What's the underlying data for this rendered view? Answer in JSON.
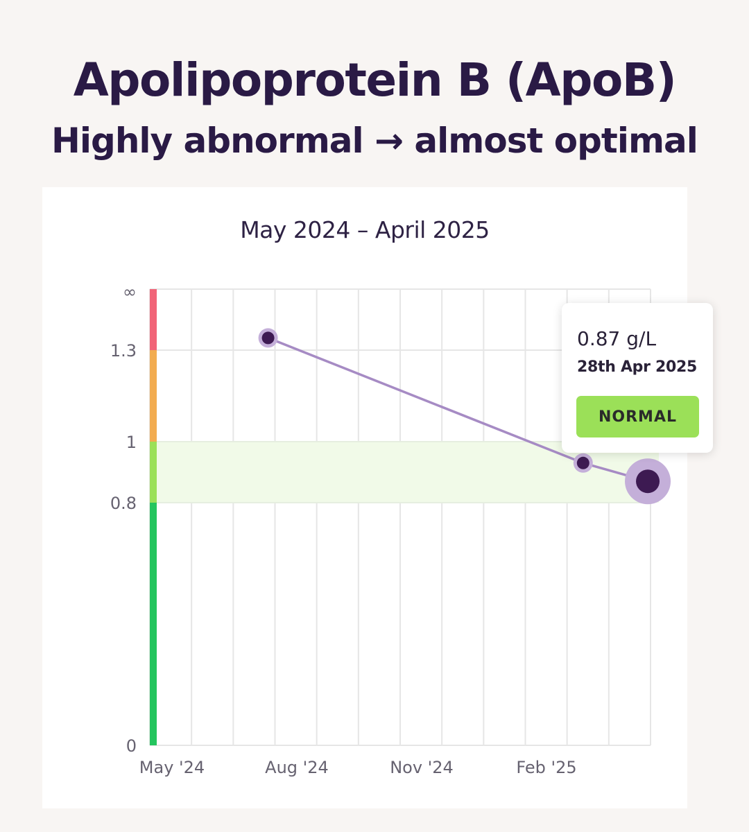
{
  "header": {
    "title": "Apolipoprotein B (ApoB)",
    "subtitle": "Highly abnormal → almost optimal"
  },
  "chart_card": {
    "date_range": "May 2024 – April 2025"
  },
  "tooltip": {
    "value": "0.87 g/L",
    "date": "28th Apr 2025",
    "status": "NORMAL"
  },
  "colors": {
    "line": "#a68bc4",
    "point_fill": "#3d1a52",
    "point_halo": "#c4afd9",
    "band_high": "#f16478",
    "band_elevated": "#f2ac50",
    "band_normal": "#9be058",
    "band_low": "#24c55e",
    "normal_zone_fill": "#f1fae8",
    "status_badge": "#9be058"
  },
  "chart_data": {
    "type": "line",
    "title": "",
    "xlabel": "",
    "ylabel": "",
    "unit": "g/L",
    "y_scale": "piecewise",
    "y_ticks": [
      {
        "value": 0,
        "label": "0"
      },
      {
        "value": 0.8,
        "label": "0.8"
      },
      {
        "value": 1,
        "label": "1"
      },
      {
        "value": 1.3,
        "label": "1.3"
      },
      {
        "value": "inf",
        "label": "∞"
      }
    ],
    "x_ticks": [
      "May '24",
      "Aug '24",
      "Nov '24",
      "Feb '25"
    ],
    "x_range": [
      "2024-05-01",
      "2025-04-30"
    ],
    "reference_bands": [
      {
        "from": 1.3,
        "to": "inf",
        "color": "#f16478"
      },
      {
        "from": 1.0,
        "to": 1.3,
        "color": "#f2ac50"
      },
      {
        "from": 0.8,
        "to": 1.0,
        "color": "#9be058"
      },
      {
        "from": 0,
        "to": 0.8,
        "color": "#24c55e"
      }
    ],
    "optimal_zone": [
      0.8,
      1.0
    ],
    "grid": true,
    "points": [
      {
        "date": "2024-07-26",
        "value": 1.36
      },
      {
        "date": "2025-03-12",
        "value": 0.93
      },
      {
        "date": "2025-04-28",
        "value": 0.87
      }
    ],
    "highlighted_point": 2
  }
}
